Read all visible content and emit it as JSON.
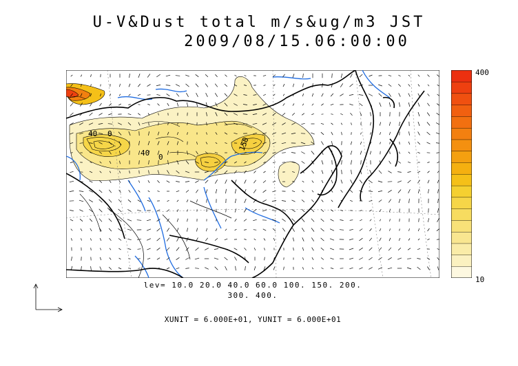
{
  "header": {
    "line1": "U-V&Dust total m/s&ug/m3 JST",
    "line2": "2009/08/15.06:00:00"
  },
  "colorbar": {
    "max_label": "400",
    "min_label": "10",
    "colors": [
      "#fdf8e0",
      "#fbf1c0",
      "#faeca8",
      "#f9e690",
      "#f8e178",
      "#f7dc60",
      "#f6d648",
      "#f5d030",
      "#f5c018",
      "#f5b010",
      "#f4a010",
      "#f49010",
      "#f38010",
      "#f27010",
      "#f16010",
      "#f05010",
      "#ee4010",
      "#ec3010"
    ]
  },
  "contour_levels": {
    "line1": "lev= 10.0 20.0 40.0 60.0 100. 150. 200.",
    "line2": "300. 400."
  },
  "map_labels": {
    "label_a": "40",
    "label_b": "0",
    "label_c": "40",
    "label_d": "0",
    "label_e": "150"
  },
  "vector_units": "XUNIT = 6.000E+01, YUNIT = 6.000E+01"
}
